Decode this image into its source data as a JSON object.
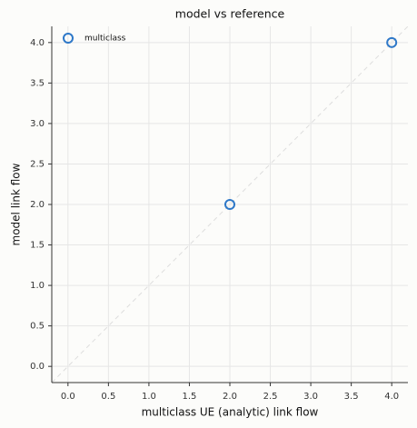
{
  "chart_data": {
    "type": "scatter",
    "title": "model vs reference",
    "xlabel": "multiclass UE (analytic) link flow",
    "ylabel": "model link flow",
    "series": [
      {
        "name": "multiclass",
        "color": "#2e78c8",
        "x": [
          2,
          4
        ],
        "values": [
          2,
          4
        ]
      }
    ],
    "xlim": [
      -0.2,
      4.2
    ],
    "ylim": [
      -0.2,
      4.2
    ],
    "xticks": [
      {
        "value": 0,
        "label": "0.0"
      },
      {
        "value": 0.5,
        "label": "0.5"
      },
      {
        "value": 1,
        "label": "1.0"
      },
      {
        "value": 1.5,
        "label": "1.5"
      },
      {
        "value": 2,
        "label": "2.0"
      },
      {
        "value": 2.5,
        "label": "2.5"
      },
      {
        "value": 3,
        "label": "3.0"
      },
      {
        "value": 3.5,
        "label": "3.5"
      },
      {
        "value": 4,
        "label": "4.0"
      }
    ],
    "yticks": [
      {
        "value": 0,
        "label": "0.0"
      },
      {
        "value": 0.5,
        "label": "0.5"
      },
      {
        "value": 1,
        "label": "1.0"
      },
      {
        "value": 1.5,
        "label": "1.5"
      },
      {
        "value": 2,
        "label": "2.0"
      },
      {
        "value": 2.5,
        "label": "2.5"
      },
      {
        "value": 3,
        "label": "3.0"
      },
      {
        "value": 3.5,
        "label": "3.5"
      },
      {
        "value": 4,
        "label": "4.0"
      }
    ],
    "grid": true,
    "legend": "upper left"
  }
}
